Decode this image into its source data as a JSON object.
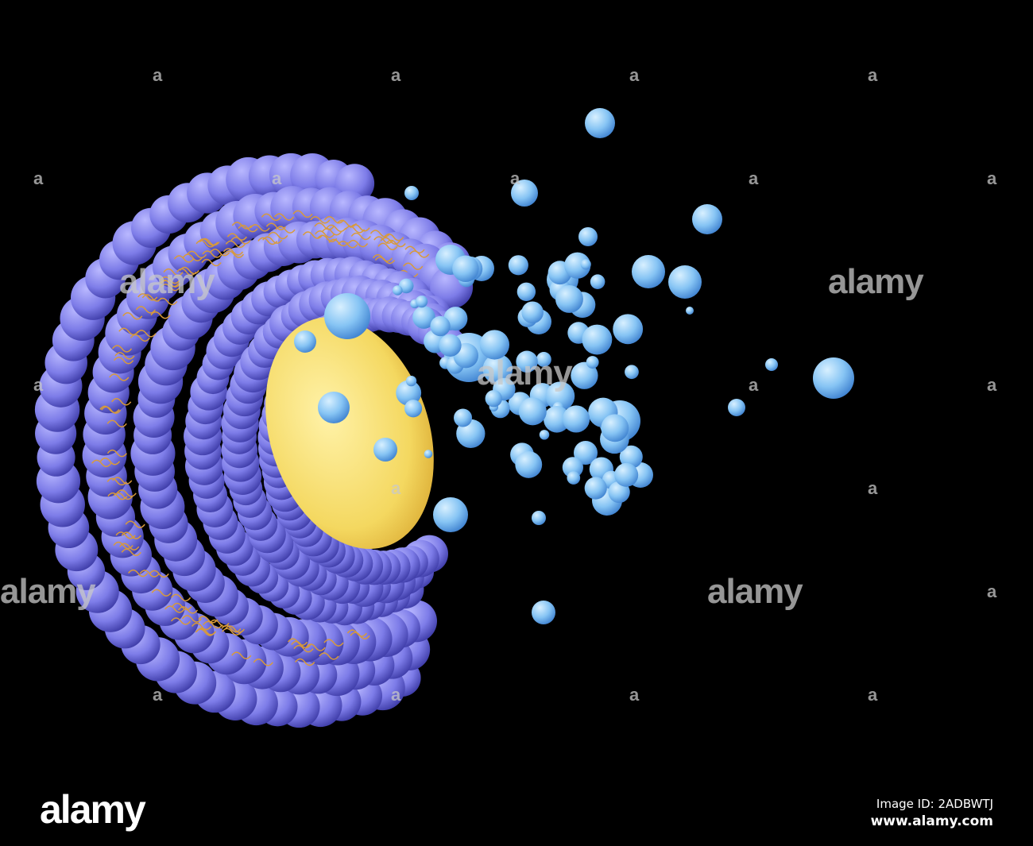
{
  "image": {
    "subject": "liposome-cross-section",
    "colors": {
      "background": "#000000",
      "shell": "#7f7ee6",
      "core": "#f3d860",
      "particles": "#8cc8f5",
      "tails": "#d89a3a"
    }
  },
  "watermark": {
    "text": "alamy",
    "letter": "a"
  },
  "footer": {
    "logo": "alamy",
    "image_id": "Image ID: 2ADBWTJ",
    "site": "www.alamy.com"
  }
}
